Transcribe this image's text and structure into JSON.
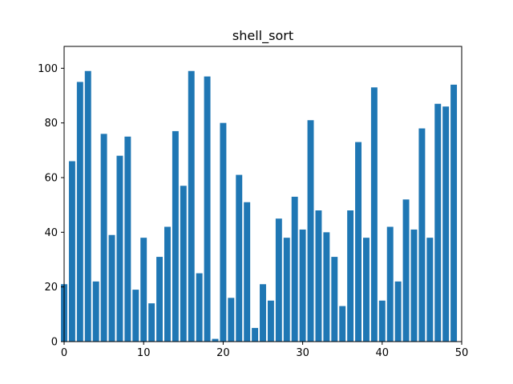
{
  "chart_data": {
    "type": "bar",
    "title": "shell_sort",
    "xlabel": "",
    "ylabel": "",
    "x": [
      0,
      1,
      2,
      3,
      4,
      5,
      6,
      7,
      8,
      9,
      10,
      11,
      12,
      13,
      14,
      15,
      16,
      17,
      18,
      19,
      20,
      21,
      22,
      23,
      24,
      25,
      26,
      27,
      28,
      29,
      30,
      31,
      32,
      33,
      34,
      35,
      36,
      37,
      38,
      39,
      40,
      41,
      42,
      43,
      44,
      45,
      46,
      47,
      48,
      49
    ],
    "values": [
      21,
      66,
      95,
      99,
      22,
      76,
      39,
      68,
      75,
      19,
      38,
      14,
      31,
      42,
      77,
      57,
      99,
      25,
      97,
      1,
      80,
      16,
      61,
      51,
      5,
      21,
      15,
      45,
      38,
      53,
      41,
      81,
      48,
      40,
      31,
      13,
      48,
      73,
      38,
      93,
      15,
      42,
      22,
      52,
      41,
      78,
      38,
      87,
      86,
      94
    ],
    "xlim": [
      0,
      50
    ],
    "ylim": [
      0,
      108
    ],
    "x_ticks": [
      0,
      10,
      20,
      30,
      40,
      50
    ],
    "y_ticks": [
      0,
      20,
      40,
      60,
      80,
      100
    ],
    "bar_color": "#1f77b4",
    "grid": false,
    "legend": "none"
  }
}
